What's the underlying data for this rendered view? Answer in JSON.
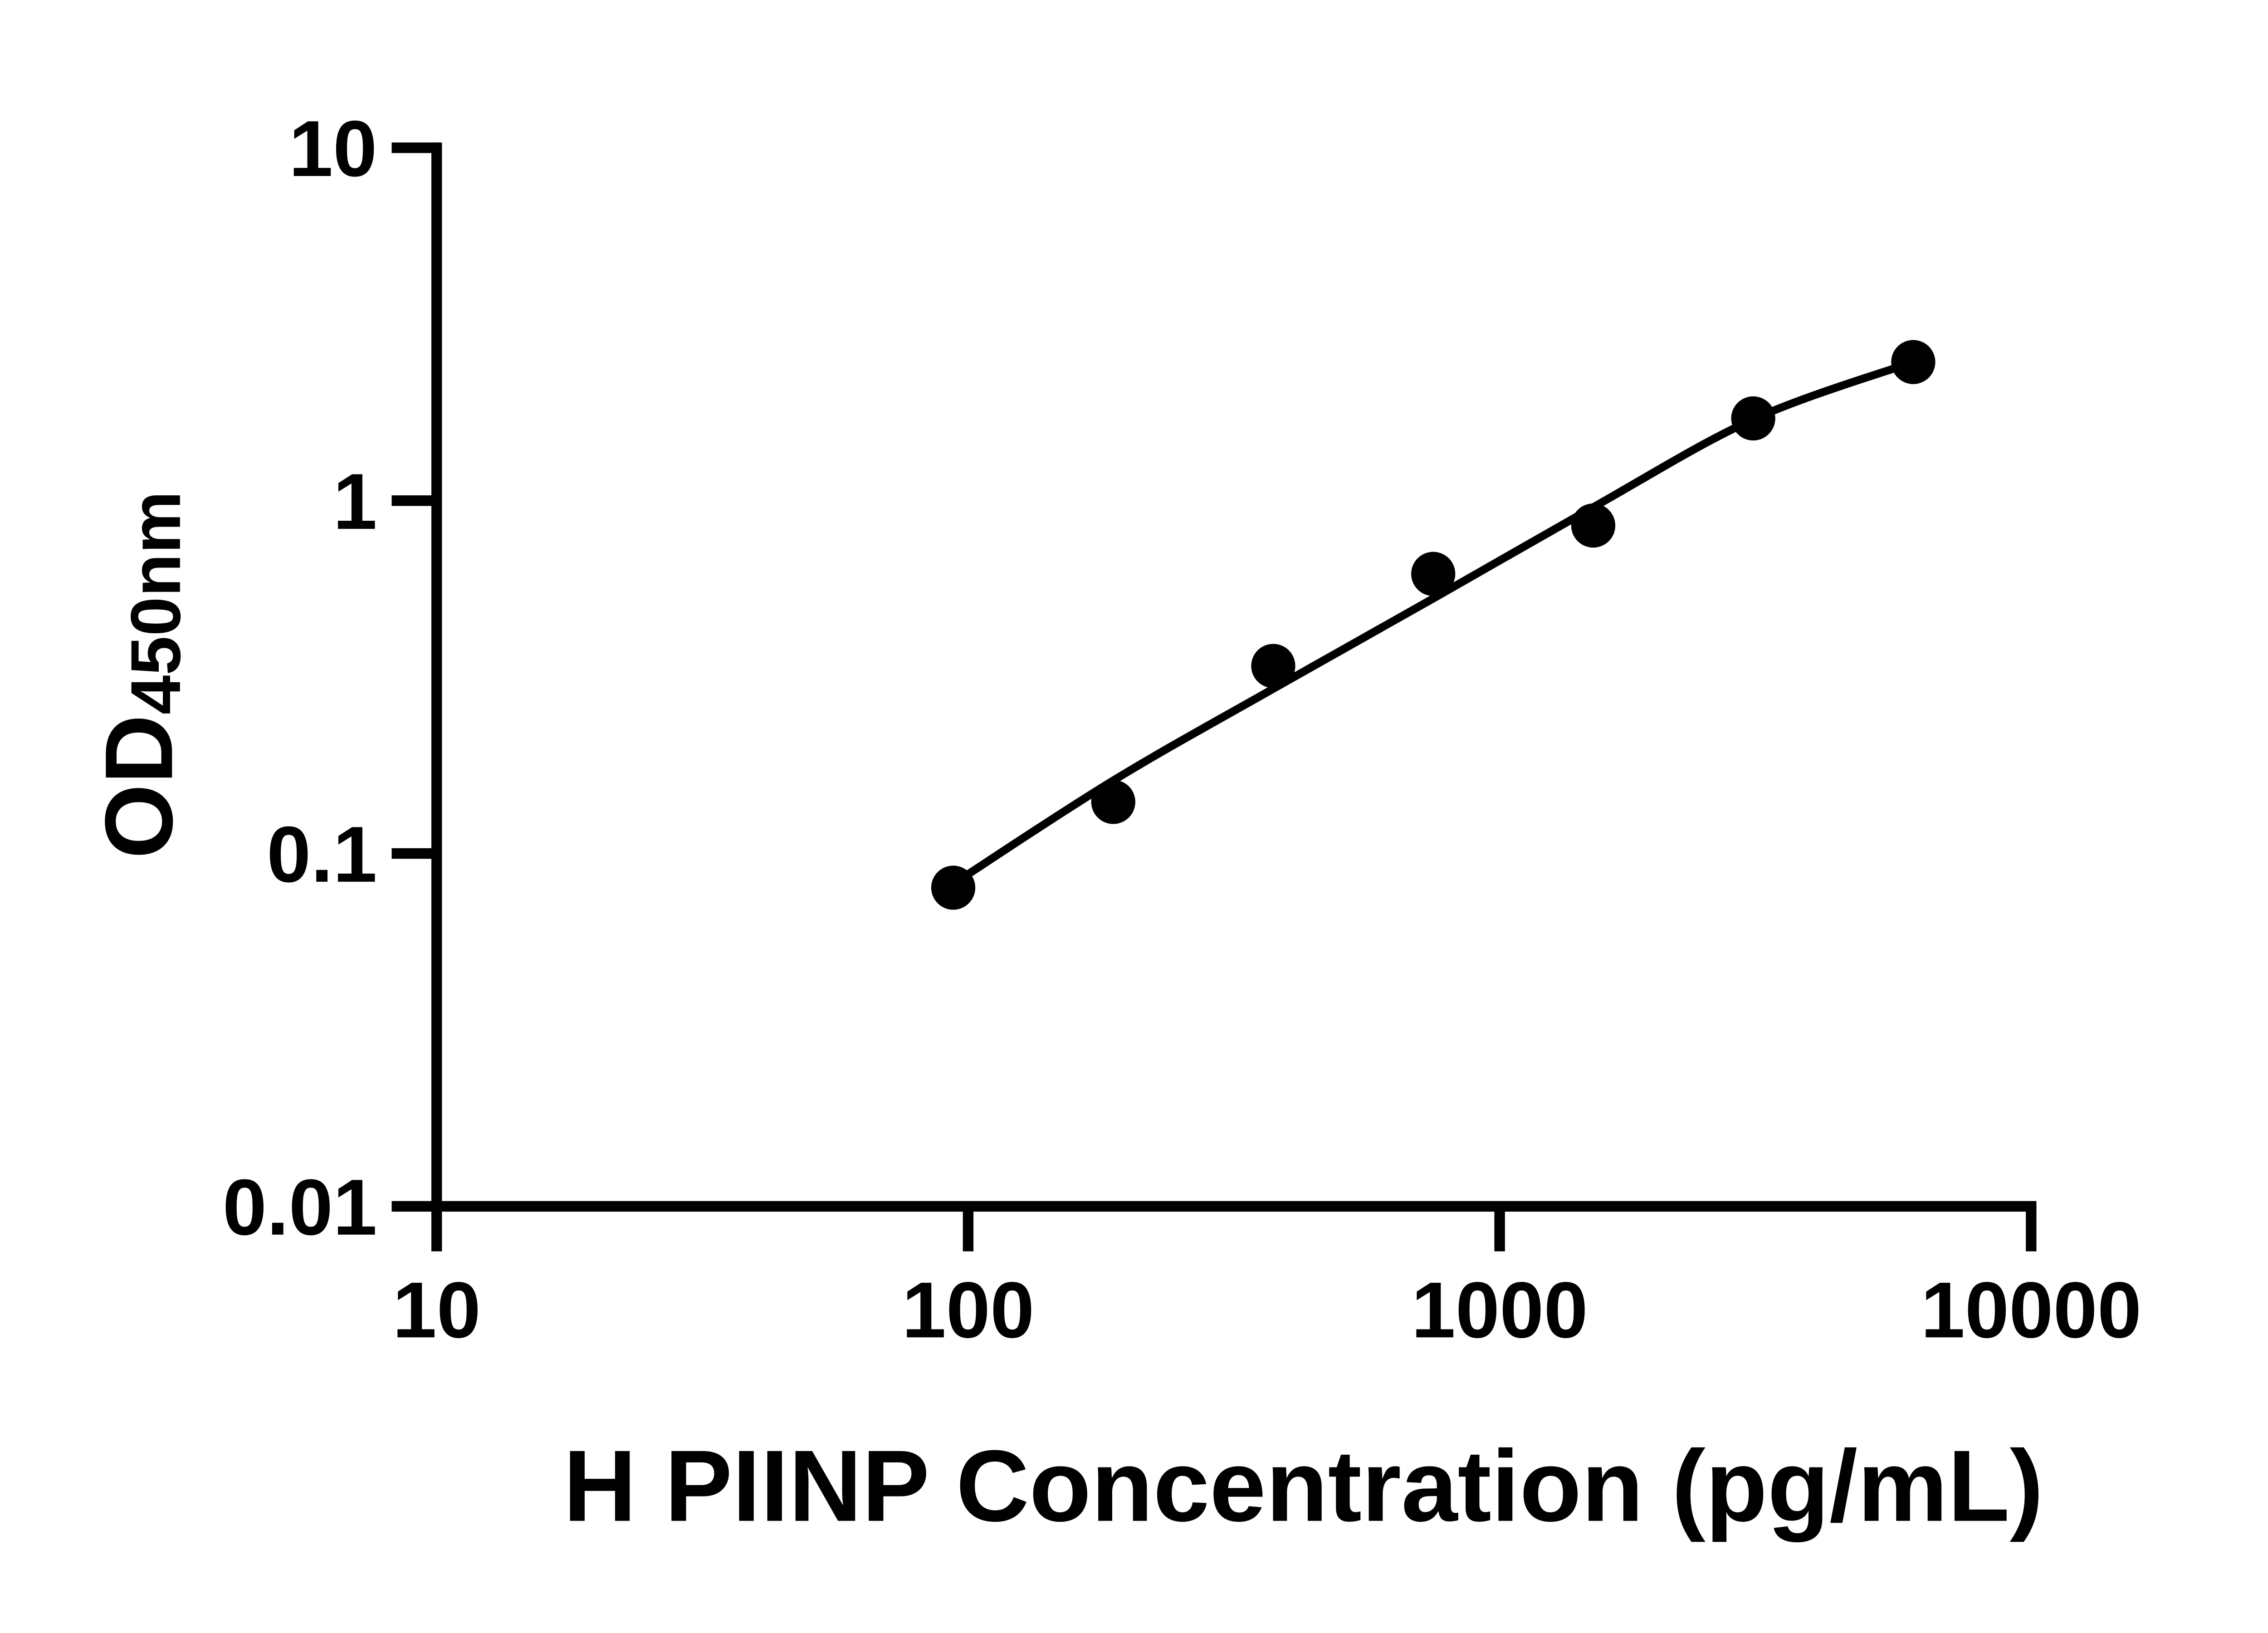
{
  "figure": {
    "background_color": "#ffffff",
    "ink_color": "#000000",
    "description": "ELISA standard curve, log-log scatter plot with fitted curve"
  },
  "chart_data": {
    "type": "scatter",
    "title": "",
    "xlabel": "H PIINP Concentration (pg/mL)",
    "ylabel_main": "OD",
    "ylabel_sub": "450nm",
    "x_scale": "log10",
    "y_scale": "log10",
    "xlim": [
      10,
      10000
    ],
    "ylim": [
      0.01,
      10
    ],
    "x_ticks": [
      10,
      100,
      1000,
      10000
    ],
    "x_tick_labels": [
      "10",
      "100",
      "1000",
      "10000"
    ],
    "y_ticks": [
      0.01,
      0.1,
      1,
      10
    ],
    "y_tick_labels": [
      "0.01",
      "0.1",
      "1",
      "10"
    ],
    "grid": false,
    "legend_position": "none",
    "series": [
      {
        "name": "standard",
        "marker": "filled-circle",
        "color": "#000000",
        "points": [
          {
            "conc": 93.75,
            "od": 0.08
          },
          {
            "conc": 187.5,
            "od": 0.14
          },
          {
            "conc": 375,
            "od": 0.34
          },
          {
            "conc": 750,
            "od": 0.62
          },
          {
            "conc": 1500,
            "od": 0.85
          },
          {
            "conc": 3000,
            "od": 1.71
          },
          {
            "conc": 6000,
            "od": 2.47
          }
        ]
      }
    ],
    "fit_curve": {
      "name": "four-parameter-logistic-fit",
      "color": "#000000",
      "points": [
        {
          "conc": 93.75,
          "od": 0.082
        },
        {
          "conc": 187.5,
          "od": 0.161
        },
        {
          "conc": 375,
          "od": 0.293
        },
        {
          "conc": 750,
          "od": 0.528
        },
        {
          "conc": 1500,
          "od": 0.958
        },
        {
          "conc": 3000,
          "od": 1.7
        },
        {
          "conc": 6000,
          "od": 2.47
        }
      ]
    }
  }
}
